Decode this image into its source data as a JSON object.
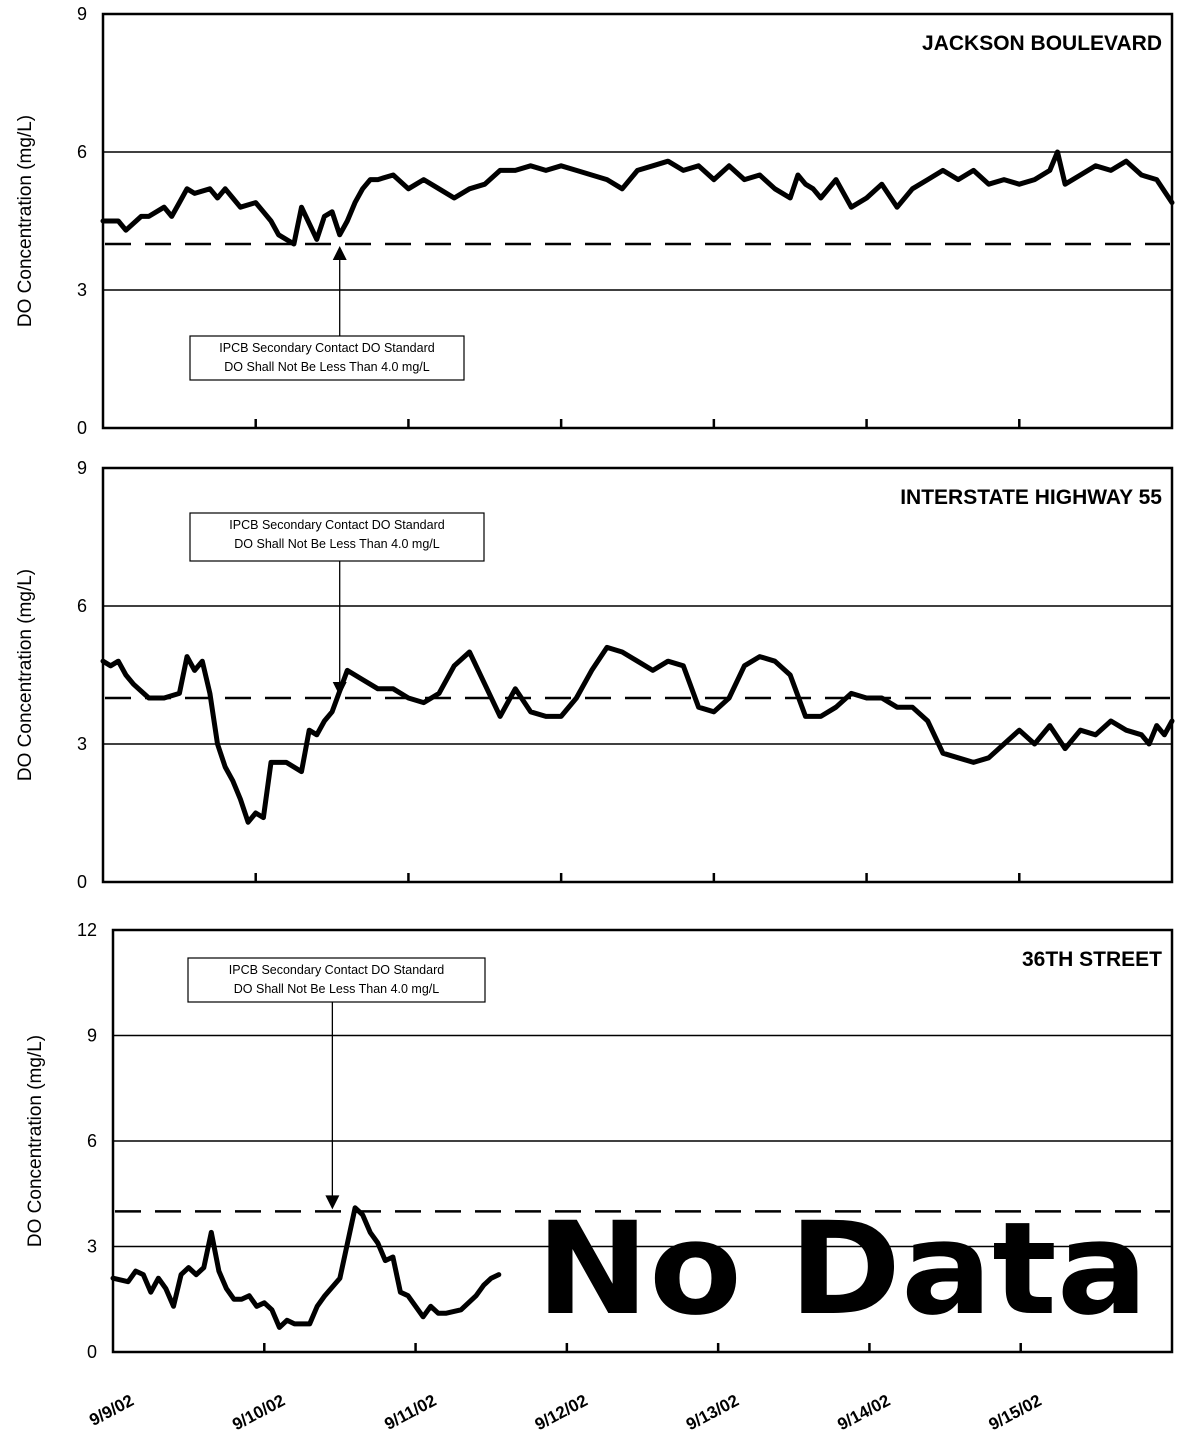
{
  "chart_data": [
    {
      "type": "line",
      "title": "JACKSON BOULEVARD",
      "ylabel": "DO Concentration (mg/L)",
      "ylim": [
        0,
        9
      ],
      "yticks": [
        "0",
        "3",
        "6",
        "9"
      ],
      "xlim": [
        "9/9/02",
        "9/16/02"
      ],
      "grid": "horizontal",
      "standard": 4.0,
      "annotation": [
        "IPCB Secondary Contact DO Standard",
        "DO Shall Not Be Less Than 4.0 mg/L"
      ],
      "annotation_target_x": 1.55,
      "series": [
        {
          "x": [
            0,
            0.1,
            0.15,
            0.25,
            0.3,
            0.4,
            0.45,
            0.5,
            0.55,
            0.6,
            0.7,
            0.75,
            0.8,
            0.85,
            0.9,
            1.0,
            1.05,
            1.1,
            1.15,
            1.25,
            1.3,
            1.4,
            1.45,
            1.5,
            1.55,
            1.6,
            1.65,
            1.7,
            1.75,
            1.8,
            1.9,
            2.0,
            2.05,
            2.1,
            2.2,
            2.3,
            2.4,
            2.5,
            2.6,
            2.7,
            2.8,
            2.9,
            3.0,
            3.1,
            3.2,
            3.3,
            3.4,
            3.5,
            3.6,
            3.7,
            3.8,
            3.9,
            4.0,
            4.1,
            4.2,
            4.3,
            4.4,
            4.5,
            4.55,
            4.6,
            4.65,
            4.7,
            4.8,
            4.9,
            5.0,
            5.1,
            5.2,
            5.3,
            5.4,
            5.5,
            5.6,
            5.7,
            5.8,
            5.9,
            6.0,
            6.1,
            6.2,
            6.25,
            6.3,
            6.4,
            6.5,
            6.6,
            6.7,
            6.8,
            6.9,
            7.0
          ],
          "y": [
            4.5,
            4.5,
            4.3,
            4.6,
            4.6,
            4.8,
            4.6,
            4.9,
            5.2,
            5.1,
            5.2,
            5.0,
            5.2,
            5.0,
            4.8,
            4.9,
            4.7,
            4.5,
            4.2,
            4.0,
            4.8,
            4.1,
            4.6,
            4.7,
            4.2,
            4.5,
            4.9,
            5.2,
            5.4,
            5.4,
            5.5,
            5.2,
            5.3,
            5.4,
            5.2,
            5.0,
            5.2,
            5.3,
            5.6,
            5.6,
            5.7,
            5.6,
            5.7,
            5.6,
            5.5,
            5.4,
            5.2,
            5.6,
            5.7,
            5.8,
            5.6,
            5.7,
            5.4,
            5.7,
            5.4,
            5.5,
            5.2,
            5.0,
            5.5,
            5.3,
            5.2,
            5.0,
            5.4,
            4.8,
            5.0,
            5.3,
            4.8,
            5.2,
            5.4,
            5.6,
            5.4,
            5.6,
            5.3,
            5.4,
            5.3,
            5.4,
            5.6,
            6.0,
            5.3,
            5.5,
            5.7,
            5.6,
            5.8,
            5.5,
            5.4,
            4.9
          ]
        }
      ]
    },
    {
      "type": "line",
      "title": "INTERSTATE HIGHWAY 55",
      "ylabel": "DO Concentration (mg/L)",
      "ylim": [
        0,
        9
      ],
      "yticks": [
        "0",
        "3",
        "6",
        "9"
      ],
      "xlim": [
        "9/9/02",
        "9/16/02"
      ],
      "grid": "horizontal",
      "standard": 4.0,
      "annotation": [
        "IPCB Secondary Contact DO Standard",
        "DO Shall Not Be Less Than 4.0 mg/L"
      ],
      "annotation_target_x": 1.55,
      "series": [
        {
          "x": [
            0,
            0.05,
            0.1,
            0.15,
            0.2,
            0.3,
            0.4,
            0.5,
            0.55,
            0.6,
            0.65,
            0.7,
            0.75,
            0.8,
            0.85,
            0.9,
            0.95,
            1.0,
            1.05,
            1.1,
            1.15,
            1.2,
            1.3,
            1.35,
            1.4,
            1.45,
            1.5,
            1.6,
            1.7,
            1.8,
            1.9,
            2.0,
            2.1,
            2.2,
            2.3,
            2.4,
            2.5,
            2.6,
            2.7,
            2.8,
            2.9,
            3.0,
            3.1,
            3.2,
            3.3,
            3.4,
            3.5,
            3.6,
            3.7,
            3.8,
            3.9,
            4.0,
            4.1,
            4.2,
            4.3,
            4.4,
            4.5,
            4.6,
            4.7,
            4.8,
            4.9,
            5.0,
            5.1,
            5.2,
            5.3,
            5.4,
            5.5,
            5.6,
            5.7,
            5.8,
            5.9,
            6.0,
            6.1,
            6.2,
            6.3,
            6.4,
            6.5,
            6.6,
            6.7,
            6.8,
            6.85,
            6.9,
            6.95,
            7.0
          ],
          "y": [
            4.8,
            4.7,
            4.8,
            4.5,
            4.3,
            4.0,
            4.0,
            4.1,
            4.9,
            4.6,
            4.8,
            4.1,
            3.0,
            2.5,
            2.2,
            1.8,
            1.3,
            1.5,
            1.4,
            2.6,
            2.6,
            2.6,
            2.4,
            3.3,
            3.2,
            3.5,
            3.7,
            4.6,
            4.4,
            4.2,
            4.2,
            4.0,
            3.9,
            4.1,
            4.7,
            5.0,
            4.3,
            3.6,
            4.2,
            3.7,
            3.6,
            3.6,
            4.0,
            4.6,
            5.1,
            5.0,
            4.8,
            4.6,
            4.8,
            4.7,
            3.8,
            3.7,
            4.0,
            4.7,
            4.9,
            4.8,
            4.5,
            3.6,
            3.6,
            3.8,
            4.1,
            4.0,
            4.0,
            3.8,
            3.8,
            3.5,
            2.8,
            2.7,
            2.6,
            2.7,
            3.0,
            3.3,
            3.0,
            3.4,
            2.9,
            3.3,
            3.2,
            3.5,
            3.3,
            3.2,
            3.0,
            3.4,
            3.2,
            3.5
          ]
        }
      ]
    },
    {
      "type": "line",
      "title": "36TH STREET",
      "ylabel": "DO Concentration (mg/L)",
      "ylim": [
        0,
        12
      ],
      "yticks": [
        "0",
        "3",
        "6",
        "9",
        "12"
      ],
      "xlim": [
        "9/9/02",
        "9/16/02"
      ],
      "xticks": [
        "9/9/02",
        "9/10/02",
        "9/11/02",
        "9/12/02",
        "9/13/02",
        "9/14/02",
        "9/15/02"
      ],
      "grid": "horizontal",
      "standard": 4.0,
      "annotation": [
        "IPCB Secondary Contact DO Standard",
        "DO Shall Not Be Less Than 4.0 mg/L"
      ],
      "annotation_target_x": 1.45,
      "overlay_text": "No Data",
      "series": [
        {
          "x": [
            0,
            0.1,
            0.15,
            0.2,
            0.25,
            0.3,
            0.35,
            0.4,
            0.45,
            0.5,
            0.55,
            0.6,
            0.65,
            0.7,
            0.75,
            0.8,
            0.85,
            0.9,
            0.95,
            1.0,
            1.05,
            1.1,
            1.15,
            1.2,
            1.25,
            1.3,
            1.35,
            1.4,
            1.5,
            1.6,
            1.65,
            1.7,
            1.75,
            1.8,
            1.85,
            1.9,
            1.95,
            2.0,
            2.05,
            2.1,
            2.15,
            2.2,
            2.3,
            2.4,
            2.45,
            2.5,
            2.55
          ],
          "y": [
            2.1,
            2.0,
            2.3,
            2.2,
            1.7,
            2.1,
            1.8,
            1.3,
            2.2,
            2.4,
            2.2,
            2.4,
            3.4,
            2.3,
            1.8,
            1.5,
            1.5,
            1.6,
            1.3,
            1.4,
            1.2,
            0.7,
            0.9,
            0.8,
            0.8,
            0.8,
            1.3,
            1.6,
            2.1,
            4.1,
            3.9,
            3.4,
            3.1,
            2.6,
            2.7,
            1.7,
            1.6,
            1.3,
            1.0,
            1.3,
            1.1,
            1.1,
            1.2,
            1.6,
            1.9,
            2.1,
            2.2
          ]
        }
      ]
    }
  ]
}
